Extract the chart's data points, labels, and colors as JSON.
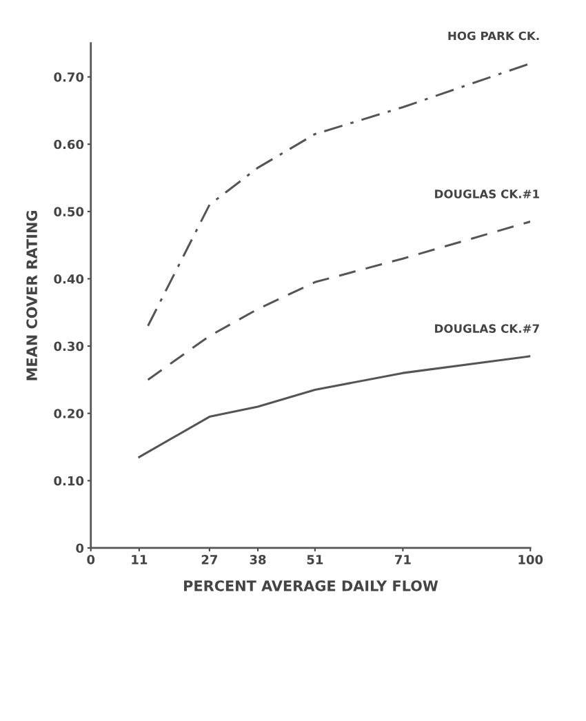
{
  "chart_data": {
    "type": "line",
    "xlabel": "PERCENT AVERAGE DAILY FLOW",
    "ylabel": "MEAN COVER RATING",
    "xlim": [
      0,
      100
    ],
    "xticks": [
      0,
      11,
      27,
      38,
      51,
      71,
      100
    ],
    "ylim": [
      0,
      0.75
    ],
    "yticks": [
      0,
      {
        "value": 0.1,
        "label": "0.10"
      },
      {
        "value": 0.2,
        "label": "0.20"
      },
      {
        "value": 0.3,
        "label": "0.30"
      },
      {
        "value": 0.4,
        "label": "0.40"
      },
      {
        "value": 0.5,
        "label": "0.50"
      },
      {
        "value": 0.6,
        "label": "0.60"
      },
      {
        "value": 0.7,
        "label": "0.70"
      }
    ],
    "grid": false,
    "legend": false,
    "marker": "none",
    "series": [
      {
        "name": "HOG PARK CK.",
        "color": "#555555",
        "line_style": "dashdot",
        "x": [
          13,
          27,
          38,
          51,
          71,
          100
        ],
        "values": [
          0.33,
          0.51,
          0.565,
          0.615,
          0.655,
          0.72
        ]
      },
      {
        "name": "DOUGLAS CK.#1",
        "color": "#555555",
        "line_style": "dashed",
        "x": [
          13,
          27,
          38,
          51,
          71,
          100
        ],
        "values": [
          0.25,
          0.315,
          0.355,
          0.395,
          0.43,
          0.485
        ]
      },
      {
        "name": "DOUGLAS CK.#7",
        "color": "#555555",
        "line_style": "solid",
        "x": [
          11,
          27,
          38,
          51,
          71,
          100
        ],
        "values": [
          0.135,
          0.195,
          0.21,
          0.235,
          0.26,
          0.285
        ]
      }
    ]
  }
}
